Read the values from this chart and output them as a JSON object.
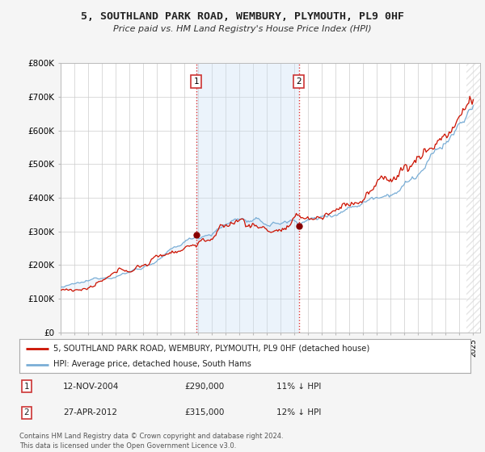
{
  "title": "5, SOUTHLAND PARK ROAD, WEMBURY, PLYMOUTH, PL9 0HF",
  "subtitle": "Price paid vs. HM Land Registry's House Price Index (HPI)",
  "ylim": [
    0,
    800000
  ],
  "yticks": [
    0,
    100000,
    200000,
    300000,
    400000,
    500000,
    600000,
    700000,
    800000
  ],
  "ytick_labels": [
    "£0",
    "£100K",
    "£200K",
    "£300K",
    "£400K",
    "£500K",
    "£600K",
    "£700K",
    "£800K"
  ],
  "xlim_start": 1995.0,
  "xlim_end": 2025.5,
  "hpi_color": "#7aaed6",
  "property_color": "#cc1100",
  "fill_alpha": 0.18,
  "fill_color": "#c8dff4",
  "hatch_region_start": 2024.5,
  "sale1_date": 2004.866,
  "sale1_price": 290000,
  "sale2_date": 2012.324,
  "sale2_price": 315000,
  "legend_property": "5, SOUTHLAND PARK ROAD, WEMBURY, PLYMOUTH, PL9 0HF (detached house)",
  "legend_hpi": "HPI: Average price, detached house, South Hams",
  "table_row1": [
    "1",
    "12-NOV-2004",
    "£290,000",
    "11% ↓ HPI"
  ],
  "table_row2": [
    "2",
    "27-APR-2012",
    "£315,000",
    "12% ↓ HPI"
  ],
  "footer": "Contains HM Land Registry data © Crown copyright and database right 2024.\nThis data is licensed under the Open Government Licence v3.0.",
  "bg_color": "#f5f5f5",
  "plot_bg": "#ffffff",
  "grid_color": "#cccccc",
  "sale_dot_color": "#880000"
}
